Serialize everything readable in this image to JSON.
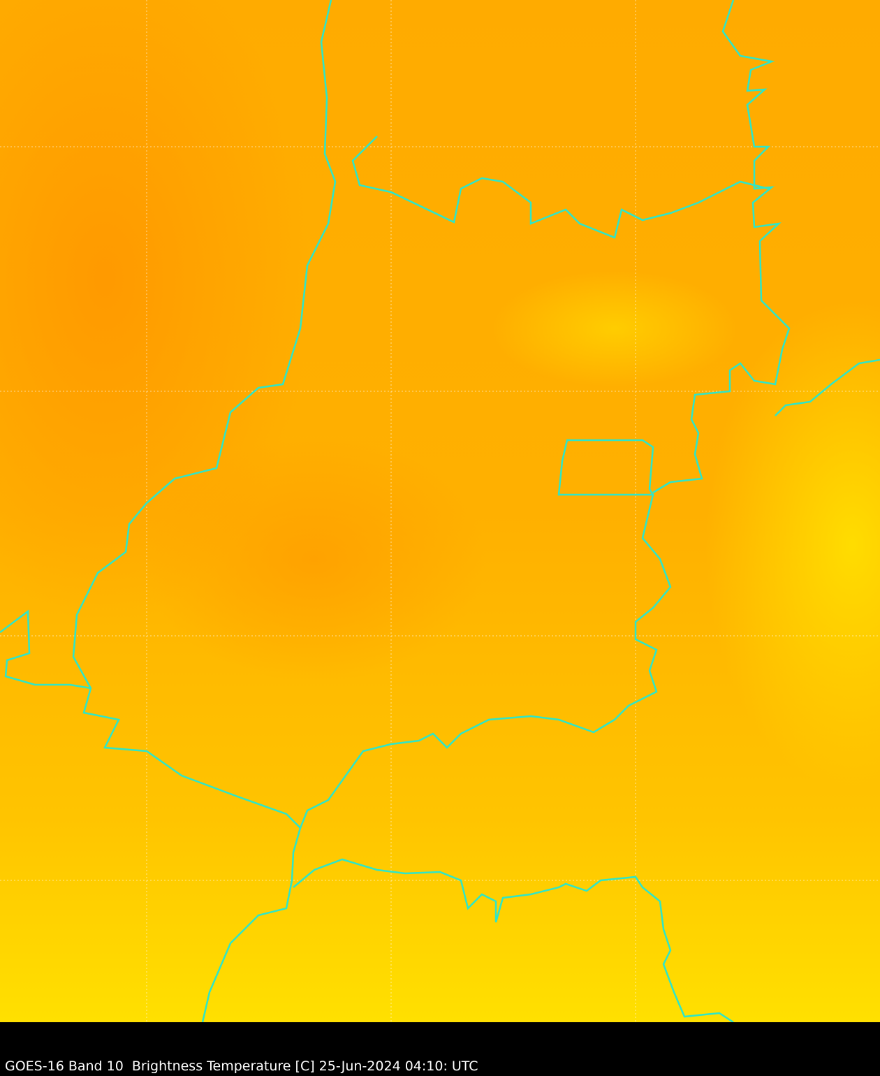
{
  "caption": "GOES-16 Band 10  Brightness Temperature [C] 25-Jun-2024 04:10: UTC",
  "colors": {
    "border": "#2ee6c8",
    "grid": "#ffffff",
    "background": "#000000",
    "warm": "#ff9f00",
    "cool": "#ffe000"
  }
}
